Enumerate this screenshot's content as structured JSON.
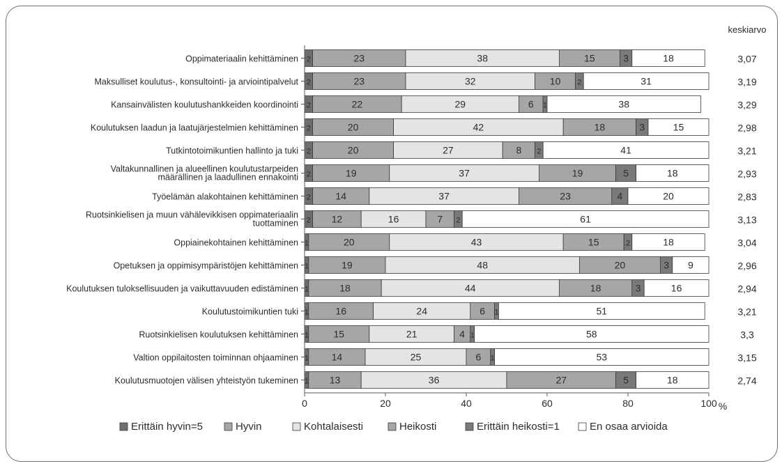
{
  "chart_data": {
    "type": "bar",
    "stacked": true,
    "orientation": "horizontal",
    "categories": [
      "Oppimateriaalin kehittäminen",
      "Maksulliset koulutus-, konsultointi- ja arviointipalvelut",
      "Kansainvälisten koulutushankkeiden koordinointi",
      "Koulutuksen laadun ja laatujärjestelmien kehittäminen",
      "Tutkintotoimikuntien hallinto ja tuki",
      "Valtakunnallinen ja alueellinen koulutustarpeiden määrällinen ja laadullinen ennakointi",
      "Työelämän alakohtainen kehittäminen",
      "Ruotsinkielisen ja muun vähälevikkisen oppimateriaalin tuottaminen",
      "Oppiainekohtainen kehittäminen",
      "Opetuksen ja oppimisympäristöjen kehittäminen",
      "Koulutuksen tuloksellisuuden ja vaikuttavuuden edistäminen",
      "Koulutustoimikuntien tuki",
      "Ruotsinkielisen koulutuksen kehittäminen",
      "Valtion oppilaitosten toiminnan ohjaaminen",
      "Koulutusmuotojen välisen yhteistyön tukeminen"
    ],
    "category_lines": [
      [
        "Oppimateriaalin kehittäminen"
      ],
      [
        "Maksulliset koulutus-, konsultointi- ja arviointipalvelut"
      ],
      [
        "Kansainvälisten koulutushankkeiden koordinointi"
      ],
      [
        "Koulutuksen laadun ja laatujärjestelmien kehittäminen"
      ],
      [
        "Tutkintotoimikuntien hallinto ja tuki"
      ],
      [
        "Valtakunnallinen ja alueellinen koulutustarpeiden",
        "määrällinen ja laadullinen ennakointi"
      ],
      [
        "Työelämän alakohtainen kehittäminen"
      ],
      [
        "Ruotsinkielisen ja muun vähälevikkisen oppimateriaalin",
        "tuottaminen"
      ],
      [
        "Oppiainekohtainen kehittäminen"
      ],
      [
        "Opetuksen ja oppimisympäristöjen kehittäminen"
      ],
      [
        "Koulutuksen tuloksellisuuden ja vaikuttavuuden edistäminen"
      ],
      [
        "Koulutustoimikuntien tuki"
      ],
      [
        "Ruotsinkielisen koulutuksen kehittäminen"
      ],
      [
        "Valtion oppilaitosten toiminnan ohjaaminen"
      ],
      [
        "Koulutusmuotojen välisen yhteistyön tukeminen"
      ]
    ],
    "series": [
      {
        "name": "Erittäin hyvin=5",
        "color": "#6e6e6e",
        "values": [
          2,
          2,
          2,
          2,
          2,
          2,
          2,
          2,
          1,
          1,
          1,
          1,
          1,
          1,
          1
        ]
      },
      {
        "name": "Hyvin",
        "color": "#a6a6a6",
        "values": [
          23,
          23,
          22,
          20,
          20,
          19,
          14,
          12,
          20,
          19,
          18,
          16,
          15,
          14,
          13
        ]
      },
      {
        "name": "Kohtalaisesti",
        "color": "#e4e4e4",
        "values": [
          38,
          32,
          29,
          42,
          27,
          37,
          37,
          16,
          43,
          48,
          44,
          24,
          21,
          25,
          36
        ]
      },
      {
        "name": "Heikosti",
        "color": "#a6a6a6",
        "values": [
          15,
          10,
          6,
          18,
          8,
          19,
          23,
          7,
          15,
          20,
          18,
          6,
          4,
          6,
          27
        ]
      },
      {
        "name": "Erittäin heikosti=1",
        "color": "#7a7a7a",
        "values": [
          3,
          2,
          1,
          3,
          2,
          5,
          4,
          2,
          2,
          3,
          3,
          1,
          1,
          1,
          5
        ]
      },
      {
        "name": "En osaa arvioida",
        "color": "#ffffff",
        "values": [
          18,
          31,
          38,
          15,
          41,
          18,
          20,
          61,
          18,
          9,
          16,
          51,
          58,
          53,
          18
        ]
      }
    ],
    "keskiarvo_label": "keskiarvo",
    "keskiarvo": [
      "3,07",
      "3,19",
      "3,29",
      "2,98",
      "3,21",
      "2,93",
      "2,83",
      "3,13",
      "3,04",
      "2,96",
      "2,94",
      "3,21",
      "3,3",
      "3,15",
      "2,74"
    ],
    "xticks": [
      0,
      20,
      40,
      60,
      80,
      100
    ],
    "xlim": [
      0,
      100
    ],
    "x_unit": "%",
    "grid": false,
    "legend_position": "bottom"
  }
}
